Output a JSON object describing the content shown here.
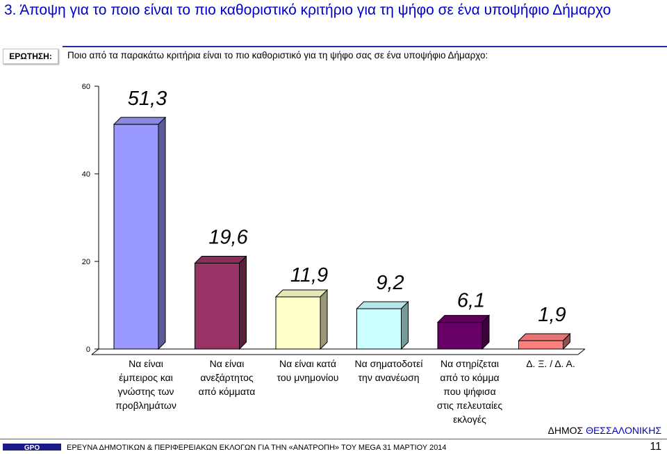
{
  "header": {
    "title": "3.  Άποψη για το ποιο είναι το πιο καθοριστικό κριτήριο για τη ψήφο σε ένα υποψήφιο Δήμαρχο"
  },
  "question": {
    "label": "ΕΡΩΤΗΣΗ:",
    "text": "Ποιο από τα παρακάτω κριτήρια είναι το πιο καθοριστικό για τη ψήφο σας σε ένα υποψήφιο Δήμαρχο:"
  },
  "chart_data": {
    "type": "bar",
    "categories": [
      [
        "Να είναι",
        "έμπειρος και",
        "γνώστης των",
        "προβλημάτων"
      ],
      [
        "Να είναι",
        "ανεξάρτητος",
        "από κόμματα"
      ],
      [
        "Να είναι κατά",
        "του μνημονίου"
      ],
      [
        "Να σηματοδοτεί",
        "την ανανέωση"
      ],
      [
        "Να στηρίζεται",
        "από το κόμμα",
        "που ψήφισα",
        "στις πελευταίες",
        "εκλογές"
      ],
      [
        "Δ. Ξ. / Δ. Α."
      ]
    ],
    "values": [
      51.3,
      19.6,
      11.9,
      9.2,
      6.1,
      1.9
    ],
    "value_labels": [
      "51,3",
      "19,6",
      "11,9",
      "9,2",
      "6,1",
      "1,9"
    ],
    "colors": [
      "#9999ff",
      "#993366",
      "#ffffcc",
      "#ccffff",
      "#660066",
      "#ff8080"
    ],
    "ylim": [
      0,
      60
    ],
    "yticks": [
      0,
      20,
      40,
      60
    ],
    "ytick_labels": [
      "0",
      "20",
      "40",
      "60"
    ],
    "title": "",
    "xlabel": "",
    "ylabel": "",
    "grid": false
  },
  "footer": {
    "logo_text": "GPO",
    "survey_text": "ΕΡΕΥΝΑ ΔΗΜΟΤΙΚΩΝ & ΠΕΡΙΦΕΡΕΙΑΚΩΝ ΕΚΛΟΓΩΝ ΓΙΑ ΤΗΝ «ΑΝΑΤΡΟΠΗ» ΤΟΥ MEGA  31 ΜΑΡΤΙΟΥ 2014",
    "brand_prefix": "ΔΗΜΟΣ ",
    "brand_city": "ΘΕΣΣΑΛΟΝΙΚΗΣ",
    "page_number": "11"
  }
}
